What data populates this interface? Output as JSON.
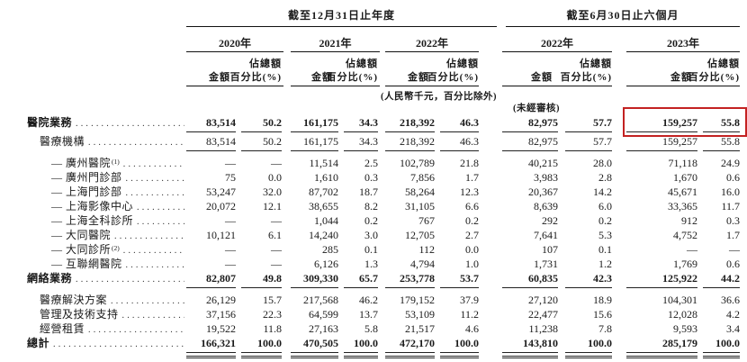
{
  "table": {
    "header": {
      "period_annual": "截至12月31日止年度",
      "period_interim": "截至6月30日止六個月",
      "years": [
        "2020年",
        "2021年",
        "2022年",
        "2022年",
        "2023年"
      ],
      "col_amount": "金額",
      "col_pct_line1": "佔總額",
      "col_pct_line2": "百分比(%)",
      "note_currency": "(人民幣千元，百分比除外)",
      "note_unaudited": "(未經審核)"
    },
    "highlight_color": "#c32222",
    "rows": [
      {
        "label": "醫院業務",
        "sup": "",
        "level": 0,
        "bold": true,
        "underline": true,
        "total": false,
        "highlight": true,
        "values": [
          "83,514",
          "50.2",
          "161,175",
          "34.3",
          "218,392",
          "46.3",
          "82,975",
          "57.7",
          "159,257",
          "55.8"
        ]
      },
      {
        "label": "醫療機構",
        "sup": "",
        "level": 1,
        "bold": false,
        "underline": true,
        "total": false,
        "highlight": false,
        "values": [
          "83,514",
          "50.2",
          "161,175",
          "34.3",
          "218,392",
          "46.3",
          "82,975",
          "57.7",
          "159,257",
          "55.8"
        ]
      },
      {
        "label": "— 廣州醫院",
        "sup": "(1)",
        "level": 2,
        "bold": false,
        "underline": false,
        "total": false,
        "highlight": false,
        "values": [
          "—",
          "—",
          "11,514",
          "2.5",
          "102,789",
          "21.8",
          "40,215",
          "28.0",
          "71,118",
          "24.9"
        ]
      },
      {
        "label": "— 廣州門診部",
        "sup": "",
        "level": 2,
        "bold": false,
        "underline": false,
        "total": false,
        "highlight": false,
        "values": [
          "75",
          "0.0",
          "1,610",
          "0.3",
          "7,856",
          "1.7",
          "3,983",
          "2.8",
          "1,670",
          "0.6"
        ]
      },
      {
        "label": "— 上海門診部",
        "sup": "",
        "level": 2,
        "bold": false,
        "underline": false,
        "total": false,
        "highlight": false,
        "values": [
          "53,247",
          "32.0",
          "87,702",
          "18.7",
          "58,264",
          "12.3",
          "20,367",
          "14.2",
          "45,671",
          "16.0"
        ]
      },
      {
        "label": "— 上海影像中心",
        "sup": "",
        "level": 2,
        "bold": false,
        "underline": false,
        "total": false,
        "highlight": false,
        "values": [
          "20,072",
          "12.1",
          "38,655",
          "8.2",
          "31,105",
          "6.6",
          "8,639",
          "6.0",
          "33,365",
          "11.7"
        ]
      },
      {
        "label": "— 上海全科診所",
        "sup": "",
        "level": 2,
        "bold": false,
        "underline": false,
        "total": false,
        "highlight": false,
        "values": [
          "—",
          "—",
          "1,044",
          "0.2",
          "767",
          "0.2",
          "292",
          "0.2",
          "912",
          "0.3"
        ]
      },
      {
        "label": "— 大同醫院",
        "sup": "",
        "level": 2,
        "bold": false,
        "underline": false,
        "total": false,
        "highlight": false,
        "values": [
          "10,121",
          "6.1",
          "14,240",
          "3.0",
          "12,705",
          "2.7",
          "7,641",
          "5.3",
          "4,752",
          "1.7"
        ]
      },
      {
        "label": "— 大同診所",
        "sup": "(2)",
        "level": 2,
        "bold": false,
        "underline": false,
        "total": false,
        "highlight": false,
        "values": [
          "—",
          "—",
          "285",
          "0.1",
          "112",
          "0.0",
          "107",
          "0.1",
          "—",
          "—"
        ]
      },
      {
        "label": "— 互聯網醫院",
        "sup": "",
        "level": 2,
        "bold": false,
        "underline": false,
        "total": false,
        "highlight": false,
        "values": [
          "—",
          "—",
          "6,126",
          "1.3",
          "4,794",
          "1.0",
          "1,731",
          "1.2",
          "1,769",
          "0.6"
        ]
      },
      {
        "label": "網絡業務",
        "sup": "",
        "level": 0,
        "bold": true,
        "underline": true,
        "total": false,
        "highlight": false,
        "values": [
          "82,807",
          "49.8",
          "309,330",
          "65.7",
          "253,778",
          "53.7",
          "60,835",
          "42.3",
          "125,922",
          "44.2"
        ]
      },
      {
        "label": "醫療解決方案",
        "sup": "",
        "level": 1,
        "bold": false,
        "underline": false,
        "total": false,
        "highlight": false,
        "values": [
          "26,129",
          "15.7",
          "217,568",
          "46.2",
          "179,152",
          "37.9",
          "27,120",
          "18.9",
          "104,301",
          "36.6"
        ]
      },
      {
        "label": "管理及技術支持",
        "sup": "",
        "level": 1,
        "bold": false,
        "underline": false,
        "total": false,
        "highlight": false,
        "values": [
          "37,156",
          "22.3",
          "64,599",
          "13.7",
          "53,109",
          "11.2",
          "22,477",
          "15.6",
          "12,028",
          "4.2"
        ]
      },
      {
        "label": "經營租賃",
        "sup": "",
        "level": 1,
        "bold": false,
        "underline": false,
        "total": false,
        "highlight": false,
        "values": [
          "19,522",
          "11.8",
          "27,163",
          "5.8",
          "21,517",
          "4.6",
          "11,238",
          "7.8",
          "9,593",
          "3.4"
        ]
      },
      {
        "label": "總計",
        "sup": "",
        "level": 0,
        "bold": true,
        "underline": true,
        "total": true,
        "highlight": false,
        "values": [
          "166,321",
          "100.0",
          "470,505",
          "100.0",
          "472,170",
          "100.0",
          "143,810",
          "100.0",
          "285,179",
          "100.0"
        ]
      }
    ]
  }
}
